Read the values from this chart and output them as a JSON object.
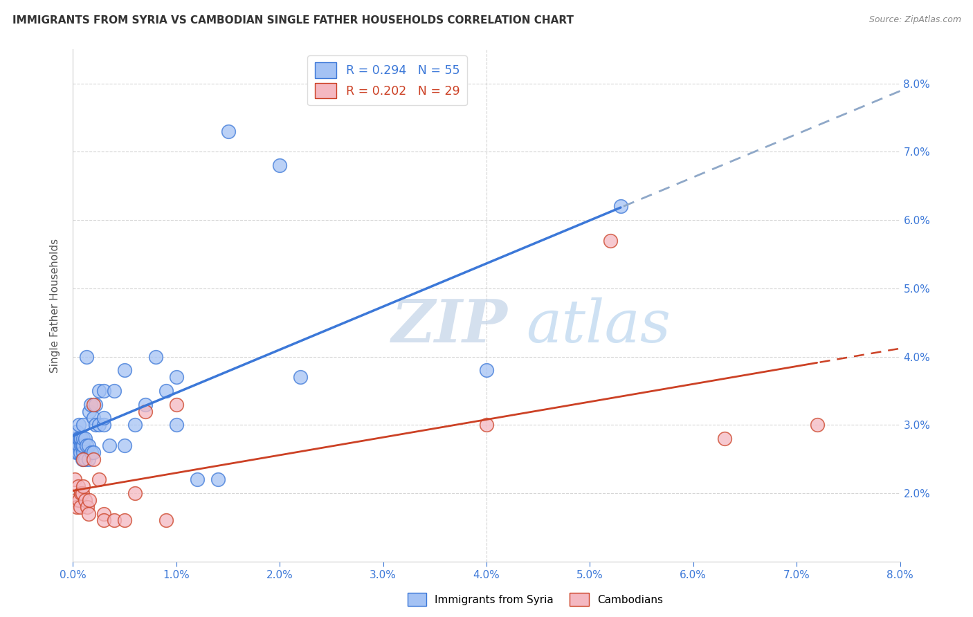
{
  "title": "IMMIGRANTS FROM SYRIA VS CAMBODIAN SINGLE FATHER HOUSEHOLDS CORRELATION CHART",
  "source": "Source: ZipAtlas.com",
  "ylabel": "Single Father Households",
  "xlim": [
    0.0,
    0.08
  ],
  "ylim": [
    0.01,
    0.085
  ],
  "color_syria": "#a4c2f4",
  "color_cambodian": "#f4b8c1",
  "trend_color_syria": "#3c78d8",
  "trend_color_cambodian": "#cc4125",
  "R_syria": 0.294,
  "N_syria": 55,
  "R_cambodian": 0.202,
  "N_cambodian": 29,
  "watermark_zip": "ZIP",
  "watermark_atlas": "atlas",
  "syria_x": [
    0.0002,
    0.0003,
    0.0003,
    0.0004,
    0.0004,
    0.0005,
    0.0005,
    0.0006,
    0.0006,
    0.0006,
    0.0007,
    0.0007,
    0.0008,
    0.0008,
    0.0009,
    0.0009,
    0.001,
    0.001,
    0.001,
    0.001,
    0.0012,
    0.0012,
    0.0013,
    0.0013,
    0.0015,
    0.0015,
    0.0016,
    0.0017,
    0.0018,
    0.002,
    0.002,
    0.0022,
    0.0022,
    0.0025,
    0.0025,
    0.003,
    0.003,
    0.003,
    0.0035,
    0.004,
    0.005,
    0.005,
    0.006,
    0.007,
    0.008,
    0.009,
    0.01,
    0.01,
    0.012,
    0.014,
    0.015,
    0.02,
    0.022,
    0.04,
    0.053
  ],
  "syria_y": [
    0.027,
    0.026,
    0.028,
    0.027,
    0.029,
    0.026,
    0.028,
    0.027,
    0.028,
    0.03,
    0.026,
    0.028,
    0.027,
    0.028,
    0.025,
    0.027,
    0.026,
    0.027,
    0.028,
    0.03,
    0.025,
    0.028,
    0.027,
    0.04,
    0.025,
    0.027,
    0.032,
    0.033,
    0.026,
    0.026,
    0.031,
    0.03,
    0.033,
    0.03,
    0.035,
    0.03,
    0.031,
    0.035,
    0.027,
    0.035,
    0.027,
    0.038,
    0.03,
    0.033,
    0.04,
    0.035,
    0.037,
    0.03,
    0.022,
    0.022,
    0.073,
    0.068,
    0.037,
    0.038,
    0.062
  ],
  "cambodian_x": [
    0.0002,
    0.0003,
    0.0004,
    0.0005,
    0.0006,
    0.0007,
    0.0008,
    0.0009,
    0.001,
    0.001,
    0.0012,
    0.0014,
    0.0015,
    0.0016,
    0.002,
    0.002,
    0.0025,
    0.003,
    0.003,
    0.004,
    0.005,
    0.006,
    0.007,
    0.009,
    0.01,
    0.04,
    0.052,
    0.063,
    0.072
  ],
  "cambodian_y": [
    0.022,
    0.019,
    0.018,
    0.021,
    0.019,
    0.018,
    0.02,
    0.02,
    0.021,
    0.025,
    0.019,
    0.018,
    0.017,
    0.019,
    0.025,
    0.033,
    0.022,
    0.017,
    0.016,
    0.016,
    0.016,
    0.02,
    0.032,
    0.016,
    0.033,
    0.03,
    0.057,
    0.028,
    0.03
  ]
}
